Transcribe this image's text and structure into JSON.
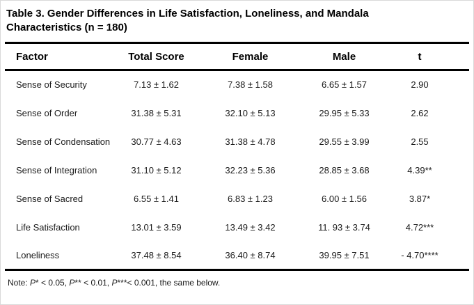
{
  "header": {
    "title_line1": "Table 3. Gender Differences in Life Satisfaction, Loneliness, and Mandala",
    "title_line2": "Characteristics (n = 180)"
  },
  "table": {
    "columns": [
      "Factor",
      "Total Score",
      "Female",
      "Male",
      "t"
    ],
    "rows": [
      {
        "factor": "Sense of Security",
        "total": "7.13 ± 1.62",
        "female": "7.38 ± 1.58",
        "male": "6.65 ± 1.57",
        "t": "2.90"
      },
      {
        "factor": "Sense of Order",
        "total": "31.38 ± 5.31",
        "female": "32.10 ± 5.13",
        "male": "29.95 ± 5.33",
        "t": "2.62"
      },
      {
        "factor": "Sense of Condensation",
        "total": "30.77 ± 4.63",
        "female": "31.38 ± 4.78",
        "male": "29.55 ± 3.99",
        "t": "2.55"
      },
      {
        "factor": "Sense of Integration",
        "total": "31.10 ± 5.12",
        "female": "32.23 ± 5.36",
        "male": "28.85 ± 3.68",
        "t": "4.39**"
      },
      {
        "factor": "Sense of Sacred",
        "total": "6.55 ± 1.41",
        "female": "6.83 ± 1.23",
        "male": "6.00 ± 1.56",
        "t": "3.87*"
      },
      {
        "factor": "Life Satisfaction",
        "total": "13.01 ± 3.59",
        "female": "13.49 ± 3.42",
        "male": "11. 93 ± 3.74",
        "t": "4.72***"
      },
      {
        "factor": "Loneliness",
        "total": "37.48 ± 8.54",
        "female": "36.40 ± 8.74",
        "male": "39.95 ± 7.51",
        "t": "- 4.70****"
      }
    ]
  },
  "note": {
    "seg1": "Note: ",
    "p1": "P",
    "seg2": "* < 0.05, ",
    "p2": "P",
    "seg3": "** < 0.01, ",
    "p3": "P",
    "seg4": "***< 0.001, the same below."
  },
  "colors": {
    "text": "#1a1a1a",
    "rule": "#000000",
    "background": "#ffffff"
  }
}
